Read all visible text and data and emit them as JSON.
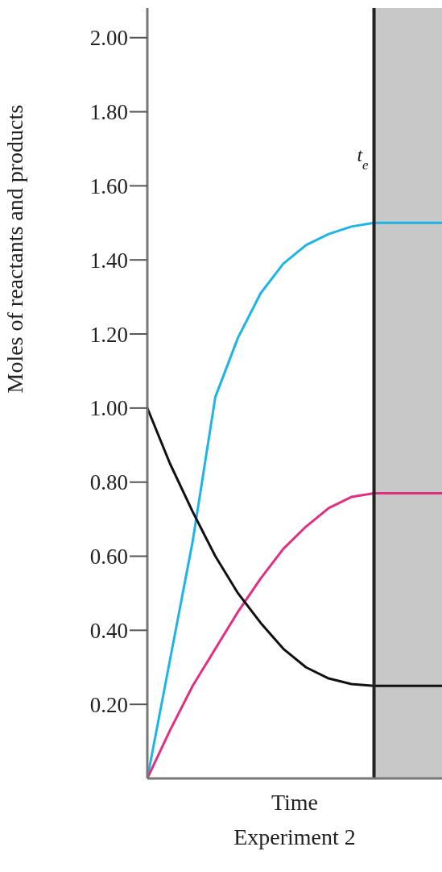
{
  "chart_data": {
    "type": "line",
    "title": "Experiment 2",
    "xlabel": "Time",
    "ylabel": "Moles of reactants and products",
    "categories": [
      null,
      null,
      null,
      null,
      null,
      null,
      null,
      null,
      null,
      null,
      null,
      null,
      null,
      null
    ],
    "series": [
      {
        "color": "#1fb4e6",
        "values": [
          0,
          0.32,
          0.64,
          1.03,
          1.19,
          1.31,
          1.39,
          1.44,
          1.47,
          1.49,
          1.5,
          1.5,
          1.5,
          1.5
        ]
      },
      {
        "color": "#e0307f",
        "values": [
          0,
          0.13,
          0.25,
          0.35,
          0.45,
          0.54,
          0.62,
          0.68,
          0.73,
          0.76,
          0.77,
          0.77,
          0.77,
          0.77
        ]
      },
      {
        "color": "#111111",
        "values": [
          1.0,
          0.85,
          0.72,
          0.6,
          0.5,
          0.42,
          0.35,
          0.3,
          0.27,
          0.255,
          0.25,
          0.25,
          0.25,
          0.25
        ]
      }
    ],
    "ylim": [
      0,
      2.08
    ],
    "yticks": [
      {
        "value": 0.2,
        "label": "0.20"
      },
      {
        "value": 0.4,
        "label": "0.40"
      },
      {
        "value": 0.6,
        "label": "0.60"
      },
      {
        "value": 0.8,
        "label": "0.80"
      },
      {
        "value": 1.0,
        "label": "1.00"
      },
      {
        "value": 1.2,
        "label": "1.20"
      },
      {
        "value": 1.4,
        "label": "1.40"
      },
      {
        "value": 1.6,
        "label": "1.60"
      },
      {
        "value": 1.8,
        "label": "1.80"
      },
      {
        "value": 2.0,
        "label": "2.00"
      }
    ],
    "grid": false,
    "legend": false,
    "marker": "none",
    "line_style": "solid",
    "annotations": [
      "t$_{e}$"
    ]
  }
}
